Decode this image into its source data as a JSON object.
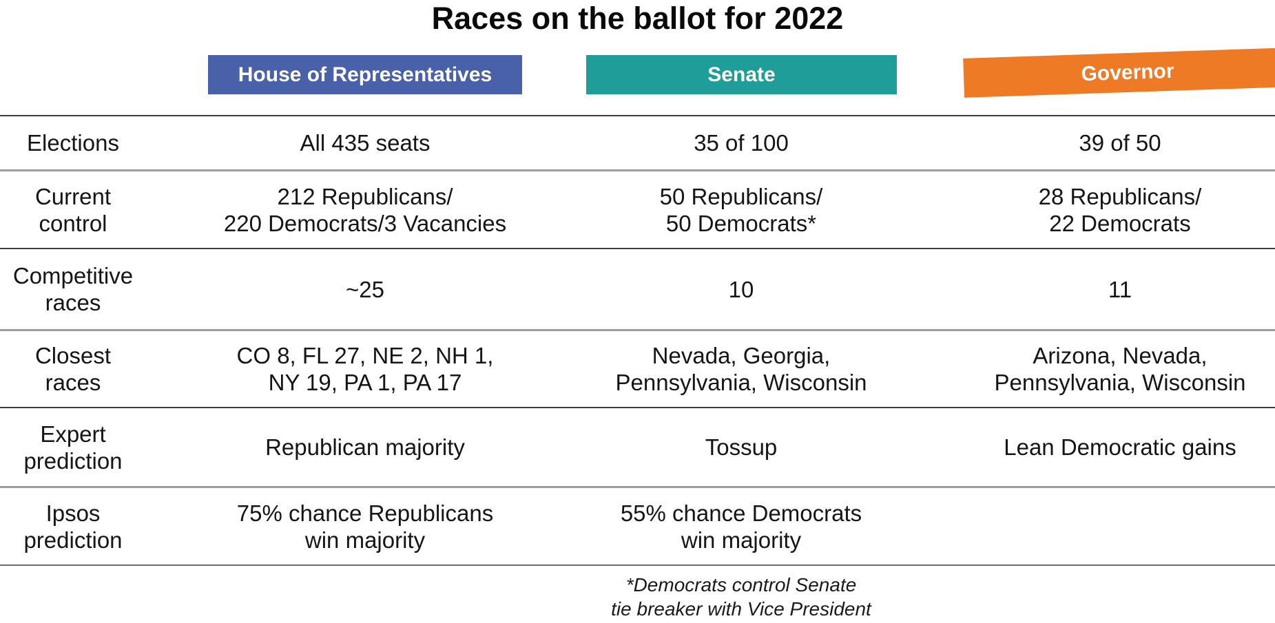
{
  "title": "Races on the ballot for 2022",
  "accent_colors": {
    "house_blue": "#4961a9",
    "senate_teal": "#1e9d99",
    "governor_orange": "#ef7a25"
  },
  "chart_data": {
    "type": "table",
    "title": "Races on the ballot for 2022",
    "columns": [
      {
        "label": "House of Representatives",
        "color": "#4961a9"
      },
      {
        "label": "Senate",
        "color": "#1e9d99"
      },
      {
        "label": "Governor",
        "color": "#ef7a25"
      }
    ],
    "rows": [
      {
        "label": "Elections",
        "cells": [
          "All 435 seats",
          "35 of 100",
          "39 of 50"
        ]
      },
      {
        "label": "Current\ncontrol",
        "cells": [
          "212 Republicans/\n220 Democrats/3 Vacancies",
          "50 Republicans/\n50 Democrats*",
          "28 Republicans/\n22 Democrats"
        ]
      },
      {
        "label": "Competitive\nraces",
        "cells": [
          "~25",
          "10",
          "11"
        ]
      },
      {
        "label": "Closest\nraces",
        "cells": [
          "CO 8, FL 27, NE 2, NH 1,\nNY 19, PA 1, PA 17",
          "Nevada, Georgia,\nPennsylvania, Wisconsin",
          "Arizona, Nevada,\nPennsylvania, Wisconsin"
        ]
      },
      {
        "label": "Expert\nprediction",
        "cells": [
          "Republican majority",
          "Tossup",
          "Lean Democratic gains"
        ]
      },
      {
        "label": "Ipsos\nprediction",
        "cells": [
          "75% chance Republicans\nwin majority",
          "55% chance Democrats\nwin majority",
          ""
        ]
      }
    ],
    "footnote": "*Democrats control Senate\ntie breaker with Vice President"
  }
}
